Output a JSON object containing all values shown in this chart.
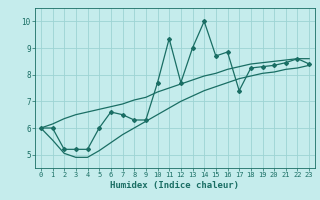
{
  "xlabel": "Humidex (Indice chaleur)",
  "bg_color": "#c5ecec",
  "line_color": "#1a6e64",
  "grid_color": "#9dd4d4",
  "x_data": [
    0,
    1,
    2,
    3,
    4,
    5,
    6,
    7,
    8,
    9,
    10,
    11,
    12,
    13,
    14,
    15,
    16,
    17,
    18,
    19,
    20,
    21,
    22,
    23
  ],
  "y_main": [
    6.0,
    6.0,
    5.2,
    5.2,
    5.2,
    6.0,
    6.6,
    6.5,
    6.3,
    6.3,
    7.7,
    9.35,
    7.7,
    9.0,
    10.0,
    8.7,
    8.85,
    7.4,
    8.25,
    8.3,
    8.35,
    8.45,
    8.6,
    8.4
  ],
  "y_low": [
    6.0,
    5.55,
    5.05,
    4.9,
    4.9,
    5.15,
    5.45,
    5.75,
    6.0,
    6.25,
    6.5,
    6.75,
    7.0,
    7.2,
    7.4,
    7.55,
    7.7,
    7.85,
    7.95,
    8.05,
    8.1,
    8.2,
    8.25,
    8.35
  ],
  "y_high": [
    6.0,
    6.15,
    6.35,
    6.5,
    6.6,
    6.7,
    6.8,
    6.9,
    7.05,
    7.15,
    7.35,
    7.5,
    7.65,
    7.8,
    7.95,
    8.05,
    8.2,
    8.3,
    8.4,
    8.45,
    8.5,
    8.55,
    8.6,
    8.6
  ],
  "xlim": [
    -0.5,
    23.5
  ],
  "ylim": [
    4.5,
    10.5
  ],
  "xticks": [
    0,
    1,
    2,
    3,
    4,
    5,
    6,
    7,
    8,
    9,
    10,
    11,
    12,
    13,
    14,
    15,
    16,
    17,
    18,
    19,
    20,
    21,
    22,
    23
  ],
  "yticks": [
    5,
    6,
    7,
    8,
    9,
    10
  ]
}
